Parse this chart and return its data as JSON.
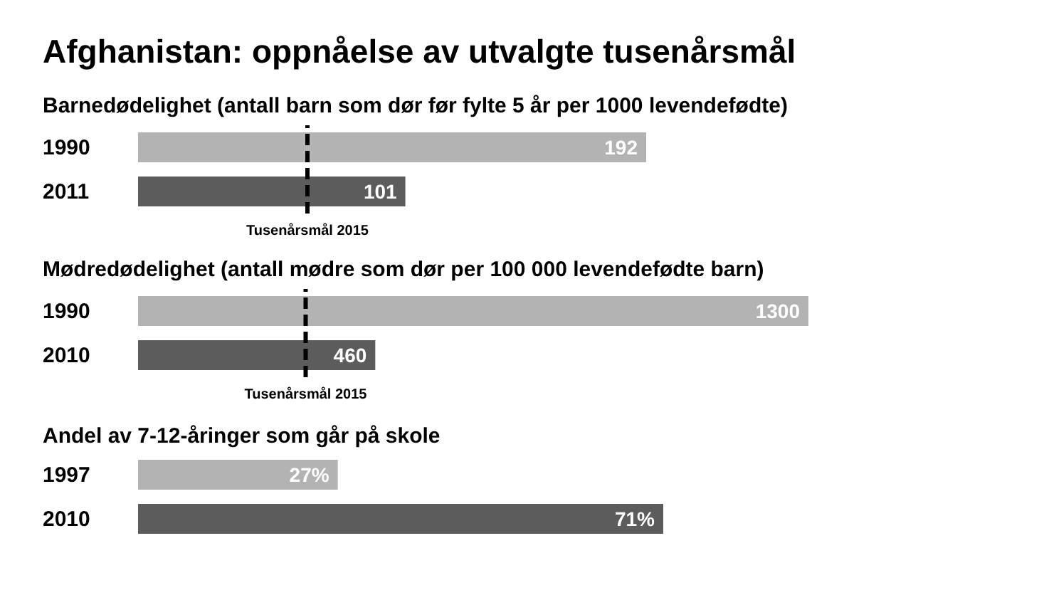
{
  "chart_data": [
    {
      "type": "bar",
      "orientation": "horizontal",
      "title": "Afghanistan: oppnåelse av utvalgte tusenårsmål",
      "subtitle": "Barnedødelighet (antall barn som dør før fylte 5 år per 1000 levendefødte)",
      "categories": [
        "1990",
        "2011"
      ],
      "values": [
        192,
        101
      ],
      "colors": [
        "#b3b3b3",
        "#5c5c5c"
      ],
      "tick_labels": "y",
      "data_labels": true,
      "ref_lines": [
        {
          "axis": "x",
          "value": 64,
          "label": "Tusenårsmål 2015",
          "color": "#000000",
          "line_style": "dashed"
        }
      ]
    },
    {
      "type": "bar",
      "orientation": "horizontal",
      "title": "Mødredødelighet (antall mødre som dør per 100 000 levendefødte barn)",
      "categories": [
        "1990",
        "2010"
      ],
      "values": [
        1300,
        460
      ],
      "colors": [
        "#b3b3b3",
        "#5c5c5c"
      ],
      "tick_labels": "y",
      "data_labels": true,
      "ref_lines": [
        {
          "axis": "x",
          "value": 325,
          "label": "Tusenårsmål 2015",
          "color": "#000000",
          "line_style": "dashed"
        }
      ]
    },
    {
      "type": "bar",
      "orientation": "horizontal",
      "title": "Andel av 7-12-åringer som går på skole",
      "categories": [
        "1997",
        "2010"
      ],
      "values": [
        27,
        71
      ],
      "value_labels": [
        "27%",
        "71%"
      ],
      "colors": [
        "#b3b3b3",
        "#5c5c5c"
      ],
      "tick_labels": "y"
    }
  ]
}
